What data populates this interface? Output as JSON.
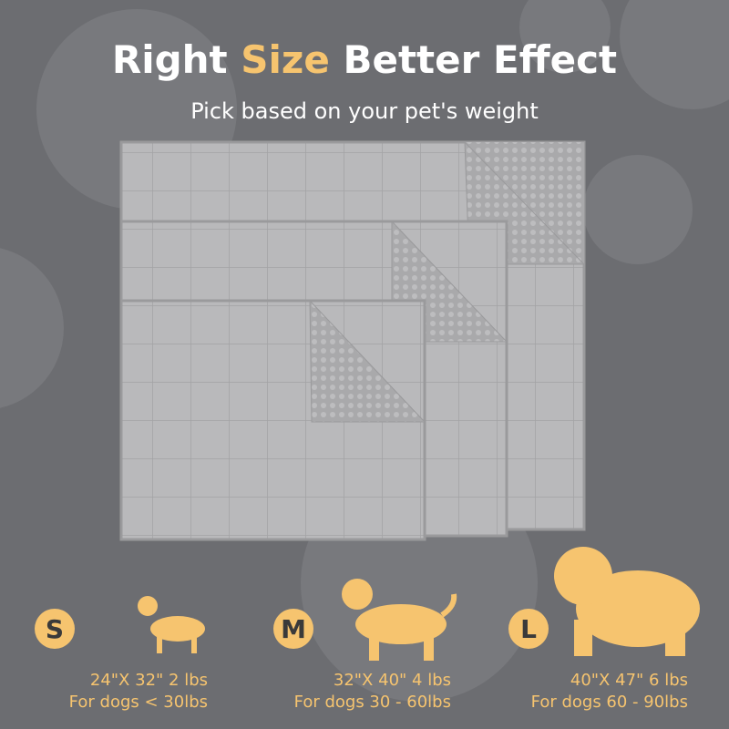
{
  "header": {
    "title_parts": [
      "Right",
      "Size",
      "Better Effect"
    ],
    "subtitle": "Pick based on your pet's weight"
  },
  "sizes": [
    {
      "letter": "S",
      "dimensions": "24\"X 32\" 2 lbs",
      "weight": "For dogs < 30lbs"
    },
    {
      "letter": "M",
      "dimensions": "32\"X 40\" 4 lbs",
      "weight": "For dogs 30 - 60lbs"
    },
    {
      "letter": "L",
      "dimensions": "40\"X 47\" 6 lbs",
      "weight": "For dogs 60 - 90lbs"
    }
  ]
}
